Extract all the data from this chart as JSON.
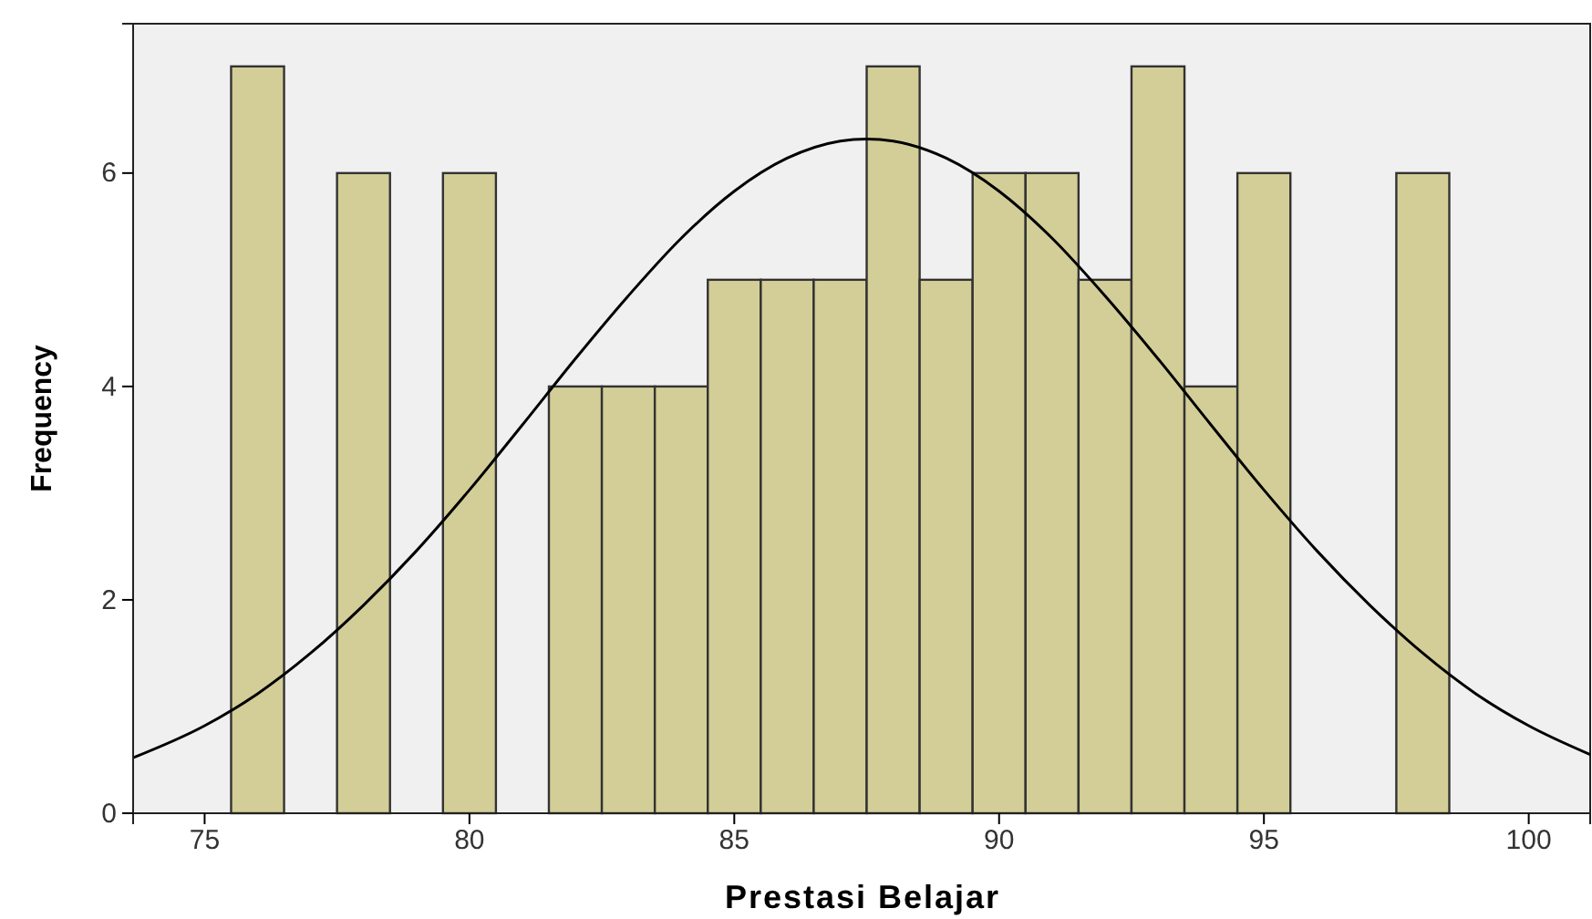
{
  "chart_data": {
    "type": "histogram",
    "xlabel": "Prestasi Belajar",
    "ylabel": "Frequency",
    "bins": [
      75.5,
      76.5,
      77.5,
      78.5,
      79.5,
      80.5,
      81.5,
      82.5,
      83.5,
      84.5,
      85.5,
      86.5,
      87.5,
      88.5,
      89.5,
      90.5,
      91.5,
      92.5,
      93.5,
      94.5,
      95.5,
      96.5,
      97.5,
      98.5
    ],
    "values": [
      7,
      0,
      6,
      0,
      6,
      0,
      4,
      4,
      4,
      5,
      5,
      5,
      7,
      5,
      6,
      6,
      5,
      7,
      4,
      6,
      0,
      0,
      6
    ],
    "color": "#d3ce97",
    "series": [
      {
        "type": "line",
        "color": "#000000",
        "x": [
          73.65,
          75,
          76,
          77,
          78,
          79,
          80,
          81,
          82,
          83,
          84,
          85,
          86,
          87,
          87.5,
          88,
          89,
          90,
          91,
          92,
          93,
          94,
          95,
          96,
          97,
          98,
          99,
          100,
          101.16
        ],
        "values": [
          0.52,
          0.82,
          1.12,
          1.5,
          1.95,
          2.46,
          3.03,
          3.64,
          4.26,
          4.85,
          5.39,
          5.83,
          6.14,
          6.3,
          6.32,
          6.3,
          6.14,
          5.83,
          5.39,
          4.85,
          4.26,
          3.64,
          3.03,
          2.46,
          1.95,
          1.5,
          1.12,
          0.82,
          0.55
        ]
      }
    ],
    "xlim": [
      73.65,
      101.16
    ],
    "ylim": [
      0,
      7.4
    ],
    "xticks": [
      75,
      80,
      85,
      90,
      95,
      100
    ],
    "yticks": [
      0,
      2,
      4,
      6
    ],
    "grid": false
  }
}
